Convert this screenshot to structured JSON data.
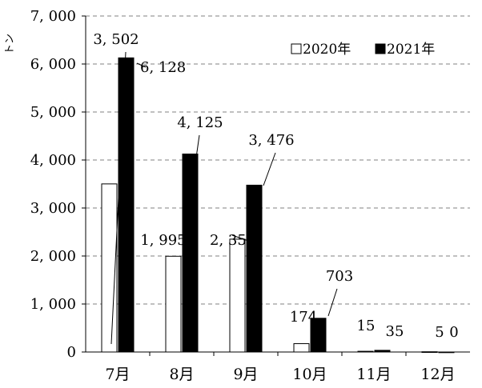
{
  "chart_data": {
    "type": "bar",
    "ylabel": "トン",
    "ylim": [
      0,
      7000
    ],
    "grid": true,
    "legend_position": "top-right",
    "categories": [
      "7月",
      "8月",
      "9月",
      "10月",
      "11月",
      "12月"
    ],
    "y_ticks": [
      0,
      1000,
      2000,
      3000,
      4000,
      5000,
      6000,
      7000
    ],
    "y_tick_labels": [
      "0",
      "1, 000",
      "2, 000",
      "3, 000",
      "4, 000",
      "5, 000",
      "6, 000",
      "7, 000"
    ],
    "series": [
      {
        "name": "2020年",
        "color": "#ffffff",
        "values": [
          3502,
          1995,
          2351,
          174,
          15,
          5
        ],
        "labels": [
          "3, 502",
          "1, 995",
          "2, 351",
          "174",
          "15",
          "5"
        ]
      },
      {
        "name": "2021年",
        "color": "#000000",
        "values": [
          6128,
          4125,
          3476,
          703,
          35,
          0
        ],
        "labels": [
          "6, 128",
          "4, 125",
          "3, 476",
          "703",
          "35",
          "0"
        ]
      }
    ]
  }
}
